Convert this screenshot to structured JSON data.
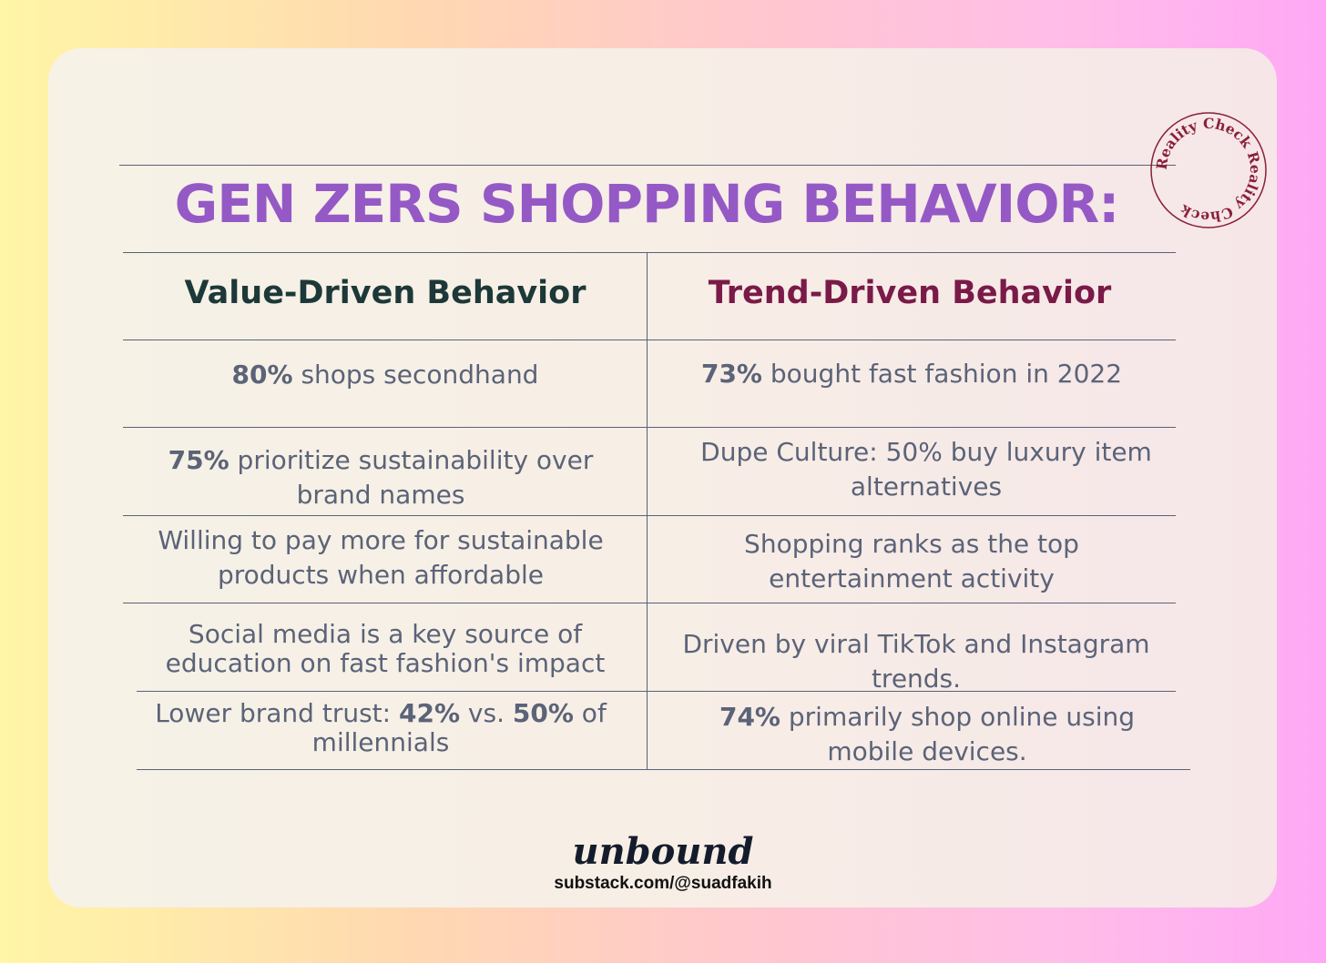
{
  "title": "GEN ZERS SHOPPING BEHAVIOR:",
  "stamp": {
    "text": "Reality Check Reality Check "
  },
  "columns": {
    "left": "Value-Driven Behavior",
    "right": "Trend-Driven Behavior"
  },
  "rows": [
    {
      "left": [
        {
          "b": "80%",
          "t": " shops secondhand"
        }
      ],
      "right": [
        {
          "b": "73%",
          "t": " bought fast fashion in 2022"
        }
      ]
    },
    {
      "left": [
        {
          "b": "75%",
          "t": " prioritize sustainability over"
        },
        {
          "t": "brand names"
        }
      ],
      "right": [
        {
          "t": "Dupe Culture: 50% buy luxury item"
        },
        {
          "t": "alternatives"
        }
      ]
    },
    {
      "left": [
        {
          "t": "Willing to pay more for sustainable"
        },
        {
          "t": "products when affordable"
        }
      ],
      "right": [
        {
          "t": "Shopping ranks as the top"
        },
        {
          "t": "entertainment activity"
        }
      ]
    },
    {
      "left": [
        {
          "t": "Social media is a key source of"
        },
        {
          "t": "education on fast fashion's impact"
        }
      ],
      "right": [
        {
          "t": "Driven by viral TikTok and Instagram"
        },
        {
          "t": "trends."
        }
      ]
    },
    {
      "left": [
        {
          "t": "Lower brand trust: "
        },
        {
          "t": "millennials"
        }
      ],
      "left_b1": "42%",
      "left_mid": " vs. ",
      "left_b2": "50%",
      "left_end": " of",
      "right": [
        {
          "b": "74%",
          "t": " primarily shop online using"
        },
        {
          "t": "mobile devices."
        }
      ]
    }
  ],
  "footer": {
    "brand": "unbound",
    "url": "substack.com/@suadfakih"
  }
}
